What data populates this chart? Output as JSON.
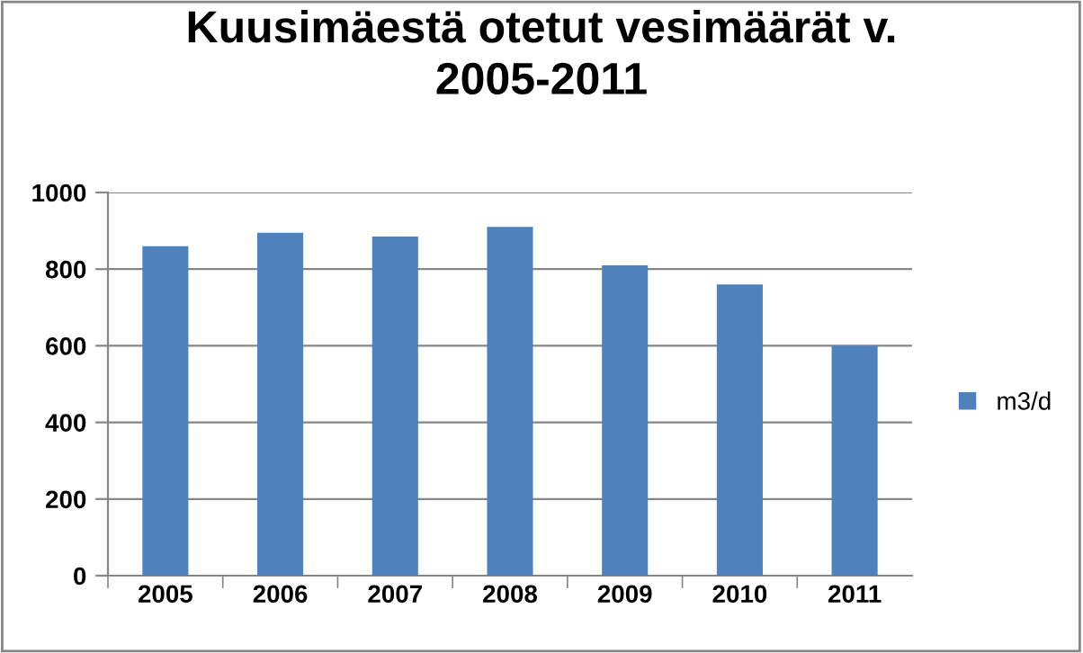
{
  "chart_data": {
    "type": "bar",
    "title": "Kuusimäestä otetut vesimäärät v.\n2005-2011",
    "categories": [
      "2005",
      "2006",
      "2007",
      "2008",
      "2009",
      "2010",
      "2011"
    ],
    "series": [
      {
        "name": "m3/d",
        "color": "#4f81bd",
        "values": [
          860,
          895,
          885,
          910,
          810,
          760,
          600
        ]
      }
    ],
    "ylim": [
      0,
      1000
    ],
    "yticks": [
      0,
      200,
      400,
      600,
      800,
      1000
    ],
    "grid": "y",
    "legend": "right"
  }
}
